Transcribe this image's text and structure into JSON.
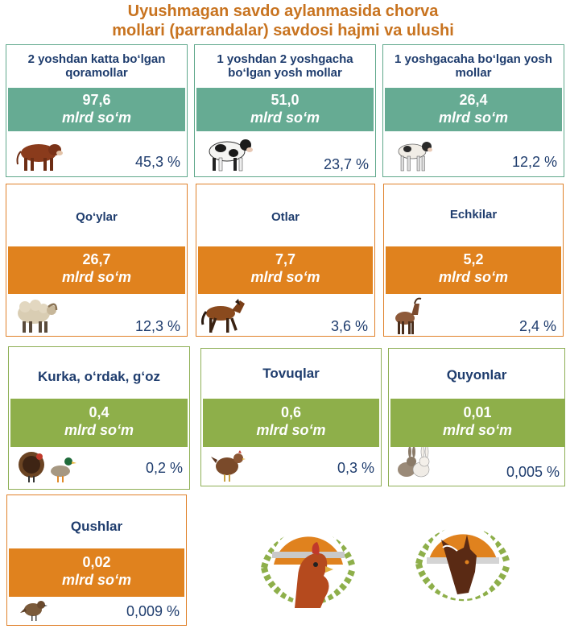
{
  "title": {
    "line1": "Uyushmagan savdo aylanmasida chorva",
    "line2": "mollari (parrandalar) savdosi hajmi va ulushi"
  },
  "unit": "mlrd so‘m",
  "cards": [
    {
      "label": "2 yoshdan katta bo‘lgan qoramollar",
      "value": "97,6",
      "share": "45,3 %",
      "icon": "bull-icon",
      "color": "#66ab93"
    },
    {
      "label": "1 yoshdan 2 yoshgacha bo‘lgan yosh mollar",
      "value": "51,0",
      "share": "23,7 %",
      "icon": "cow-icon",
      "color": "#66ab93"
    },
    {
      "label": "1 yoshgacaha bo‘lgan yosh mollar",
      "value": "26,4",
      "share": "12,2 %",
      "icon": "calf-icon",
      "color": "#66ab93"
    },
    {
      "label": "Qo‘ylar",
      "value": "26,7",
      "share": "12,3 %",
      "icon": "sheep-icon",
      "color": "#e0821e"
    },
    {
      "label": "Otlar",
      "value": "7,7",
      "share": "3,6 %",
      "icon": "horse-icon",
      "color": "#e0821e"
    },
    {
      "label": "Echkilar",
      "value": "5,2",
      "share": "2,4 %",
      "icon": "goat-icon",
      "color": "#e0821e"
    },
    {
      "label": "Kurka, o‘rdak, g‘oz",
      "value": "0,4",
      "share": "0,2 %",
      "icon": "turkey-duck-icon",
      "color": "#8eaf4a"
    },
    {
      "label": "Tovuqlar",
      "value": "0,6",
      "share": "0,3 %",
      "icon": "chicken-icon",
      "color": "#8eaf4a"
    },
    {
      "label": "Quyonlar",
      "value": "0,01",
      "share": "0,005 %",
      "icon": "rabbit-icon",
      "color": "#8eaf4a"
    },
    {
      "label": "Qushlar",
      "value": "0,02",
      "share": "0,009 %",
      "icon": "sparrow-icon",
      "color": "#e0821e"
    }
  ]
}
